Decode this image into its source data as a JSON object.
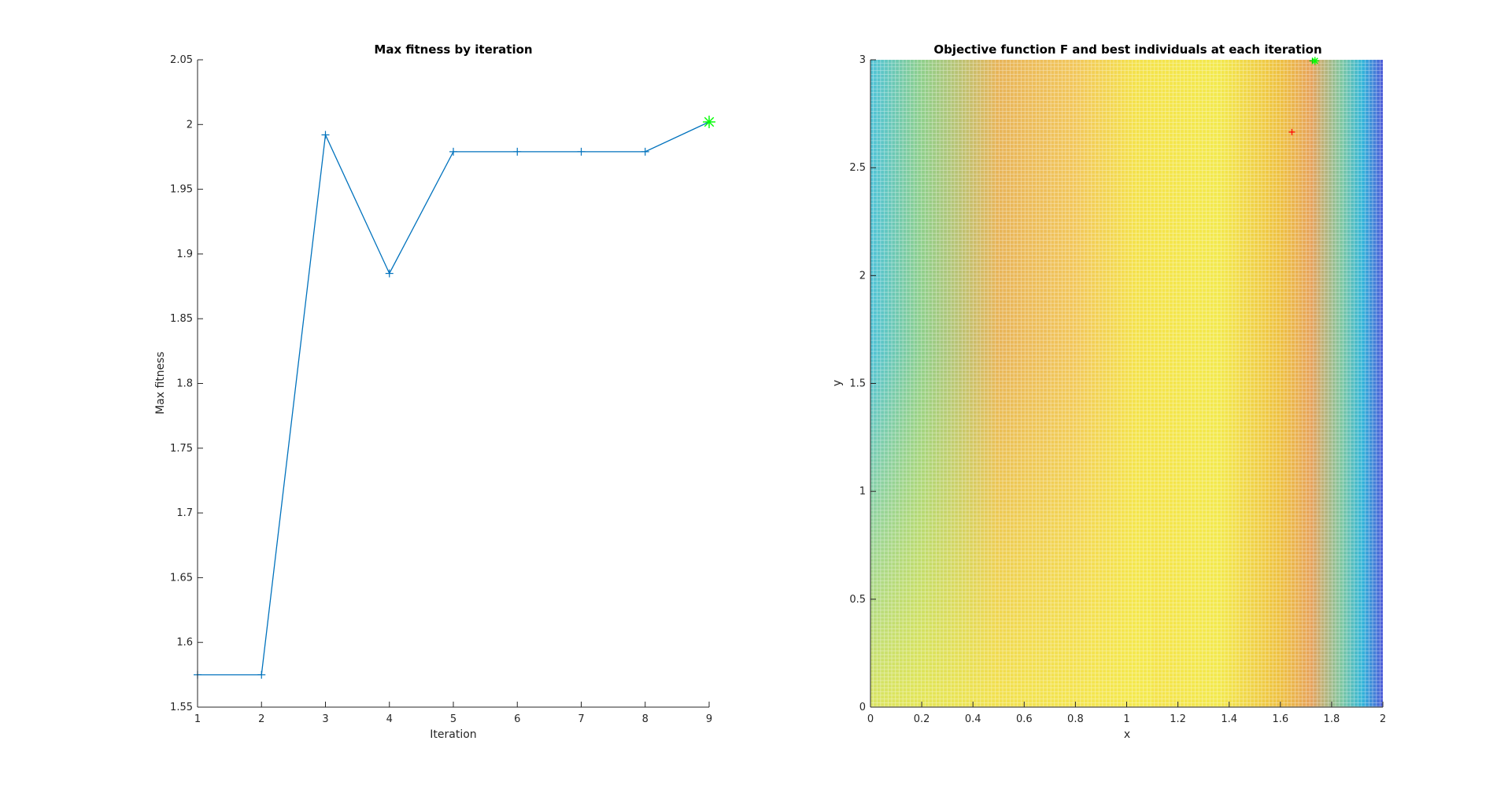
{
  "chart_data": [
    {
      "type": "line",
      "title": "Max fitness by iteration",
      "xlabel": "Iteration",
      "ylabel": "Max fitness",
      "xlim": [
        1,
        9
      ],
      "ylim": [
        1.55,
        2.05
      ],
      "grid": false,
      "xticks": [
        "1",
        "2",
        "3",
        "4",
        "5",
        "6",
        "7",
        "8",
        "9"
      ],
      "yticks": [
        "1.55",
        "1.6",
        "1.65",
        "1.7",
        "1.75",
        "1.8",
        "1.85",
        "1.9",
        "1.95",
        "2",
        "2.05"
      ],
      "series": [
        {
          "x": [
            1,
            2,
            3,
            4,
            5,
            6,
            7,
            8,
            9
          ],
          "y": [
            1.575,
            1.575,
            1.992,
            1.885,
            1.979,
            1.979,
            1.979,
            1.979,
            2.002
          ],
          "color": "#0072bd",
          "marker": "+"
        }
      ],
      "highlight_point": {
        "x": 9,
        "y": 2.002,
        "color": "#00ff00",
        "marker": "*"
      }
    },
    {
      "type": "mesh",
      "title": "Objective function F and best individuals at each iteration",
      "xlabel": "x",
      "ylabel": "y",
      "xlim": [
        0,
        2
      ],
      "ylim": [
        0,
        3
      ],
      "grid": false,
      "xticks": [
        "0",
        "0.2",
        "0.4",
        "0.6",
        "0.8",
        "1",
        "1.2",
        "1.4",
        "1.6",
        "1.8",
        "2"
      ],
      "yticks": [
        "0",
        "0.5",
        "1",
        "1.5",
        "2",
        "2.5",
        "3"
      ],
      "colormap": "parula",
      "points": [
        {
          "x": 1.645,
          "y": 2.665,
          "color": "#ff0000",
          "marker": "+"
        },
        {
          "x": 1.725,
          "y": 2.995,
          "color": "#00aa00",
          "marker": "+"
        },
        {
          "x": 1.735,
          "y": 2.995,
          "color": "#00ff00",
          "marker": "*"
        }
      ]
    }
  ]
}
